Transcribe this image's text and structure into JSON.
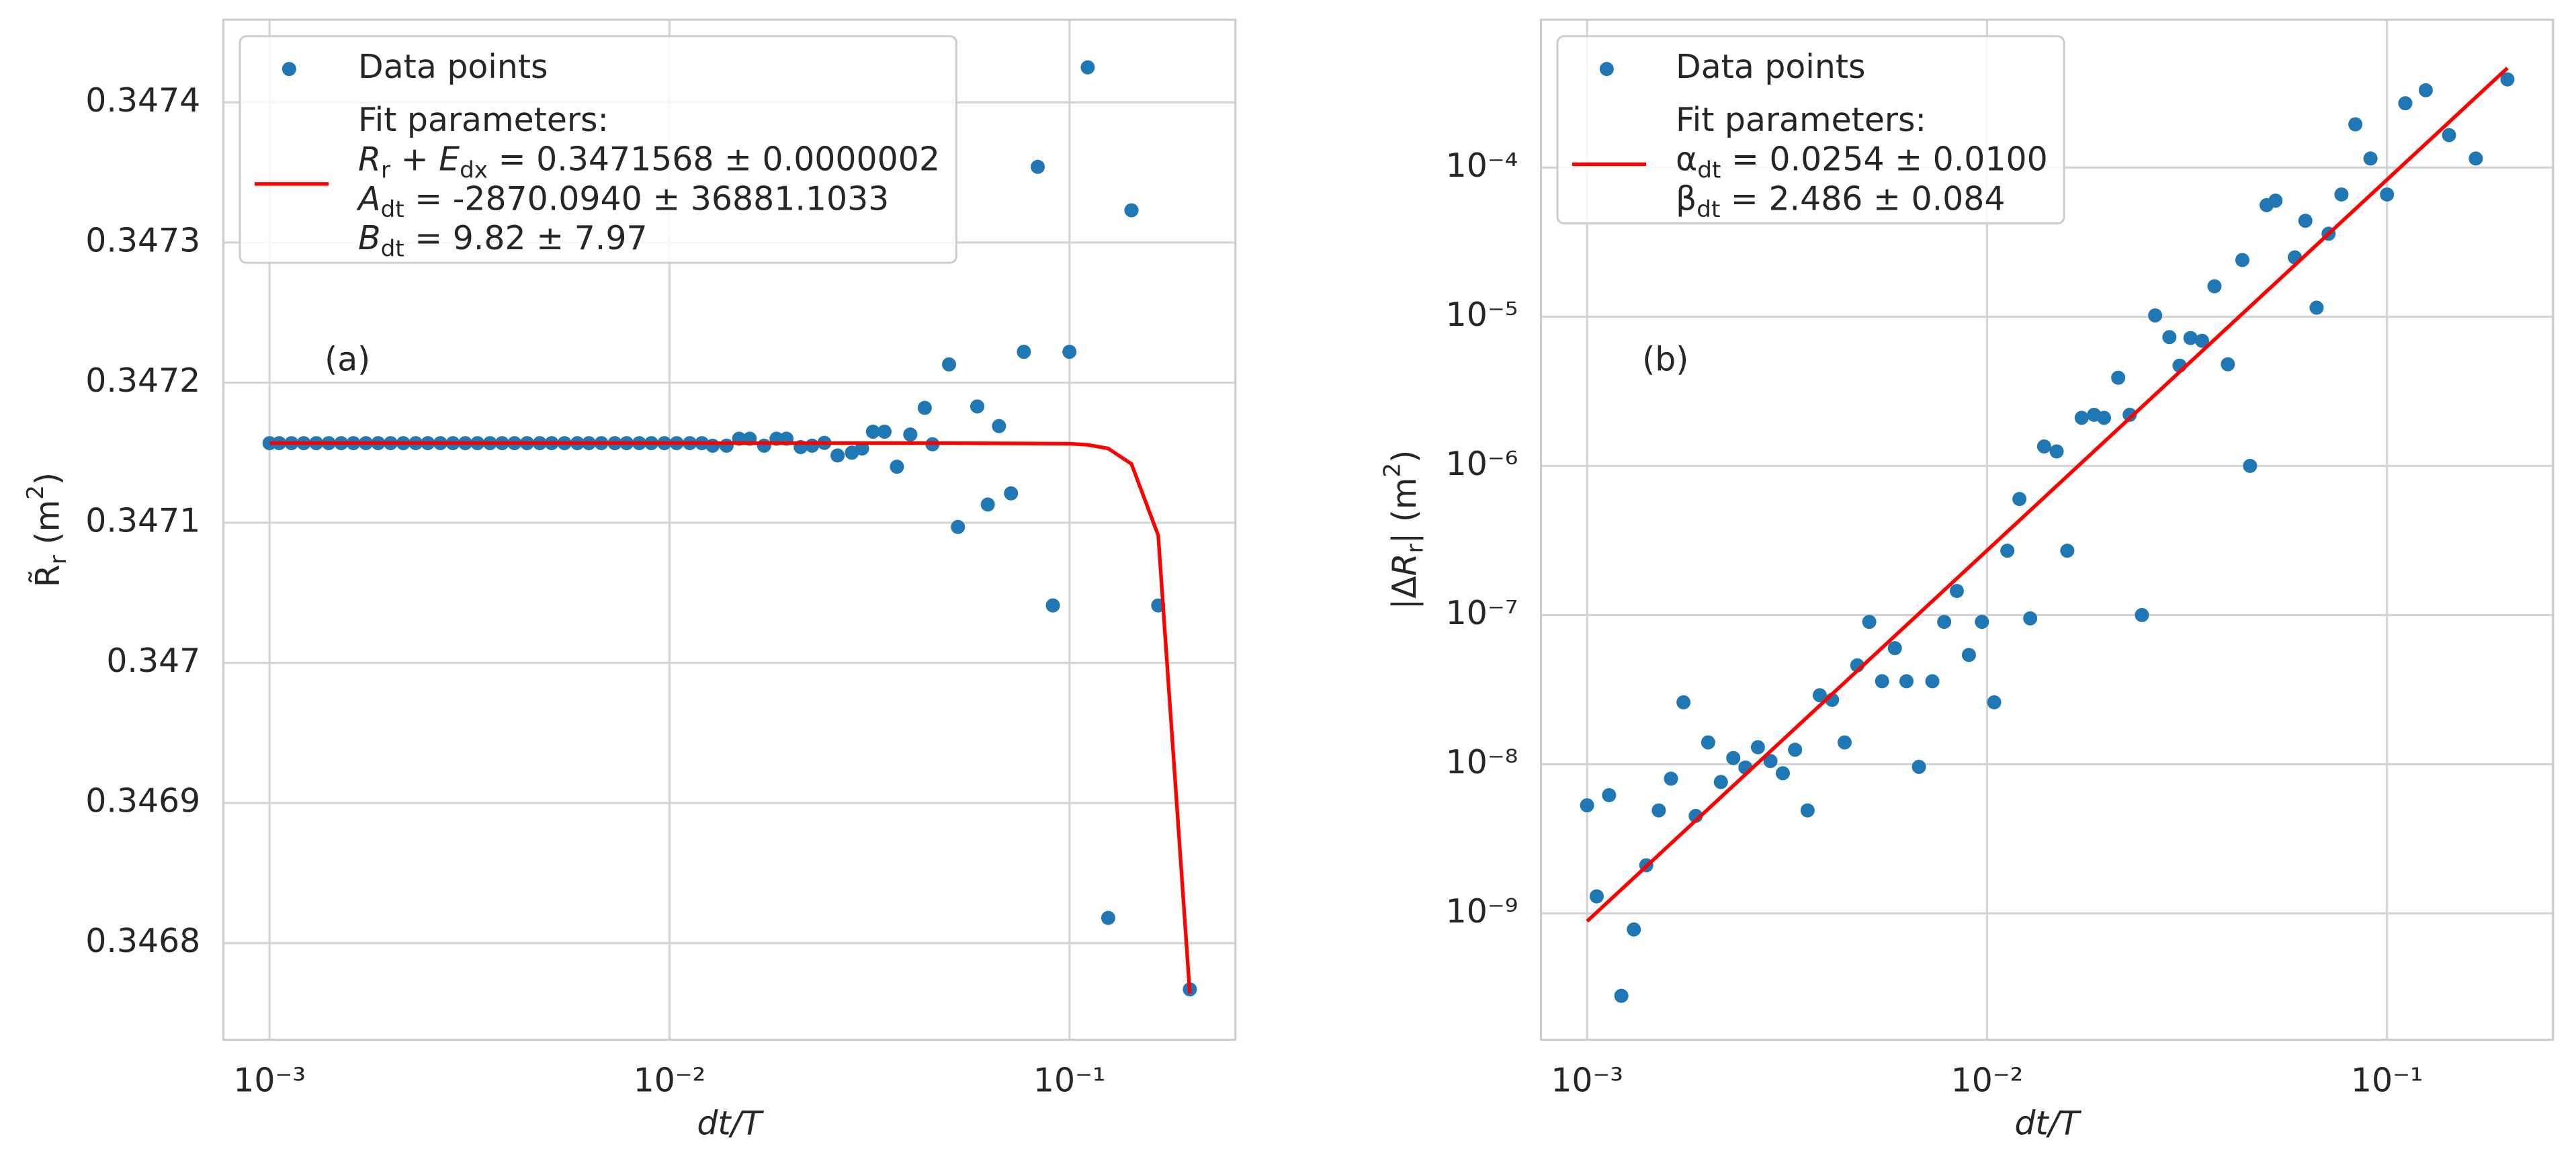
{
  "chart_data": [
    {
      "type": "scatter",
      "xlabel": "dt/T",
      "ylabel": [
        "R̃",
        {
          "text": "r",
          "script": "sub"
        },
        " (m",
        {
          "text": "2",
          "script": "sup"
        },
        ")"
      ],
      "xscale": "log",
      "yscale": "linear",
      "grid": true,
      "legend": "upper left",
      "annotation": "(a)",
      "xlim": [
        0.000767,
        0.26
      ],
      "ylim": [
        0.346731,
        0.347459
      ],
      "xticks": [
        {
          "value": 0.001,
          "label": "10⁻³"
        },
        {
          "value": 0.01,
          "label": "10⁻²"
        },
        {
          "value": 0.1,
          "label": "10⁻¹"
        }
      ],
      "yticks": [
        0.3468,
        0.3469,
        0.347,
        0.3471,
        0.3472,
        0.3473,
        0.3474
      ],
      "series": [
        {
          "name": "Data points",
          "type": "scatter",
          "color": "#1f77b4",
          "x": [
            0.001,
            0.001057,
            0.001135,
            0.001218,
            0.001309,
            0.001406,
            0.001511,
            0.001621,
            0.001742,
            0.001869,
            0.002008,
            0.00216,
            0.00232,
            0.002488,
            0.002674,
            0.002874,
            0.003086,
            0.003311,
            0.003559,
            0.003817,
            0.004098,
            0.004405,
            0.004739,
            0.005076,
            0.005464,
            0.005882,
            0.006289,
            0.006757,
            0.007299,
            0.007813,
            0.008403,
            0.009009,
            0.009709,
            0.01042,
            0.01124,
            0.01205,
            0.01282,
            0.01389,
            0.01493,
            0.01587,
            0.01724,
            0.01852,
            0.01961,
            0.02128,
            0.02273,
            0.02439,
            0.02632,
            0.02857,
            0.0303,
            0.03226,
            0.03448,
            0.03704,
            0.04,
            0.04348,
            0.04545,
            0.05,
            0.05263,
            0.05882,
            0.0625,
            0.06667,
            0.07143,
            0.07692,
            0.08333,
            0.09091,
            0.1,
            0.1111,
            0.125,
            0.1429,
            0.1667,
            0.2
          ],
          "values": [
            0.3471568,
            0.3471568,
            0.3471568,
            0.3471568,
            0.3471568,
            0.3471568,
            0.3471568,
            0.3471568,
            0.3471568,
            0.3471568,
            0.3471568,
            0.3471568,
            0.3471568,
            0.3471568,
            0.3471568,
            0.3471568,
            0.3471568,
            0.3471568,
            0.3471568,
            0.3471568,
            0.3471568,
            0.3471568,
            0.3471568,
            0.3471568,
            0.3471568,
            0.3471568,
            0.3471568,
            0.3471568,
            0.3471568,
            0.3471568,
            0.3471568,
            0.3471568,
            0.3471568,
            0.3471568,
            0.3471568,
            0.3471568,
            0.347155,
            0.347155,
            0.34716,
            0.34716,
            0.347155,
            0.34716,
            0.34716,
            0.347154,
            0.347155,
            0.347157,
            0.347148,
            0.34715,
            0.347153,
            0.347165,
            0.347165,
            0.34714,
            0.347163,
            0.347182,
            0.347156,
            0.347213,
            0.347097,
            0.347183,
            0.347113,
            0.347169,
            0.347121,
            0.347222,
            0.347354,
            0.347041,
            0.347222,
            0.347425,
            0.346818,
            0.347323,
            0.347041,
            0.346767
          ]
        },
        {
          "name": [
            [
              "Fit parameters:"
            ],
            [
              {
                "text": "R",
                "script": "ital"
              },
              {
                "text": "r",
                "script": "sub"
              },
              " + ",
              {
                "text": "E",
                "script": "ital"
              },
              {
                "text": "dx",
                "script": "sub"
              },
              " = 0.3471568 ± 0.0000002"
            ],
            [
              {
                "text": "A",
                "script": "ital"
              },
              {
                "text": "dt",
                "script": "sub"
              },
              " = -2870.0940 ± 36881.1033"
            ],
            [
              {
                "text": "B",
                "script": "ital"
              },
              {
                "text": "dt",
                "script": "sub"
              },
              " = 9.82 ± 7.97"
            ]
          ],
          "type": "line",
          "color": "#ff0000",
          "x": [
            0.001,
            0.01,
            0.05,
            0.1,
            0.1111,
            0.125,
            0.1429,
            0.1667,
            0.2
          ],
          "values": [
            0.3471568,
            0.3471568,
            0.3471568,
            0.3471564,
            0.3471556,
            0.347153,
            0.347142,
            0.347091,
            0.346764
          ]
        }
      ]
    },
    {
      "type": "scatter",
      "xlabel": "dt/T",
      "ylabel": [
        "|Δ",
        {
          "text": "R",
          "script": "ital"
        },
        {
          "text": "r",
          "script": "sub"
        },
        "| (m",
        {
          "text": "2",
          "script": "sup"
        },
        ")"
      ],
      "xscale": "log",
      "yscale": "log",
      "grid": true,
      "legend": "upper left",
      "annotation": "(b)",
      "xlim": [
        0.000767,
        0.26
      ],
      "ylim": [
        1.42e-10,
        0.00098
      ],
      "xticks": [
        {
          "value": 0.001,
          "label": "10⁻³"
        },
        {
          "value": 0.01,
          "label": "10⁻²"
        },
        {
          "value": 0.1,
          "label": "10⁻¹"
        }
      ],
      "yticks": [
        {
          "value": 1e-09,
          "label": "10⁻⁹"
        },
        {
          "value": 1e-08,
          "label": "10⁻⁸"
        },
        {
          "value": 1e-07,
          "label": "10⁻⁷"
        },
        {
          "value": 1e-06,
          "label": "10⁻⁶"
        },
        {
          "value": 1e-05,
          "label": "10⁻⁵"
        },
        {
          "value": 0.0001,
          "label": "10⁻⁴"
        }
      ],
      "series": [
        {
          "name": "Data points",
          "type": "scatter",
          "color": "#1f77b4",
          "x": [
            0.001,
            0.001057,
            0.001135,
            0.001218,
            0.001309,
            0.001406,
            0.001511,
            0.001621,
            0.001742,
            0.001869,
            0.002008,
            0.00216,
            0.00232,
            0.002488,
            0.002674,
            0.002874,
            0.003086,
            0.003311,
            0.003559,
            0.003817,
            0.004098,
            0.004405,
            0.004739,
            0.005076,
            0.005464,
            0.005882,
            0.006289,
            0.006757,
            0.007299,
            0.007813,
            0.008403,
            0.009009,
            0.009709,
            0.01042,
            0.01124,
            0.01205,
            0.01282,
            0.01389,
            0.01493,
            0.01587,
            0.01724,
            0.01852,
            0.01961,
            0.02128,
            0.02273,
            0.02439,
            0.02632,
            0.02857,
            0.0303,
            0.03226,
            0.03448,
            0.03704,
            0.04,
            0.04348,
            0.04545,
            0.05,
            0.05263,
            0.05882,
            0.0625,
            0.06667,
            0.07143,
            0.07692,
            0.08333,
            0.09091,
            0.1,
            0.1111,
            0.125,
            0.1429,
            0.1667,
            0.2
          ],
          "values": [
            5.3e-09,
            1.3e-09,
            6.2e-09,
            2.8e-10,
            7.8e-10,
            2.1e-09,
            4.9e-09,
            8e-09,
            2.6e-08,
            4.5e-09,
            1.4e-08,
            7.6e-09,
            1.1e-08,
            9.5e-09,
            1.3e-08,
            1.05e-08,
            8.7e-09,
            1.25e-08,
            4.9e-09,
            2.9e-08,
            2.7e-08,
            1.4e-08,
            4.6e-08,
            9e-08,
            3.6e-08,
            6e-08,
            3.6e-08,
            9.6e-09,
            3.6e-08,
            9e-08,
            1.45e-07,
            5.4e-08,
            9e-08,
            2.6e-08,
            2.7e-07,
            6e-07,
            9.5e-08,
            1.35e-06,
            1.25e-06,
            2.7e-07,
            2.1e-06,
            2.2e-06,
            2.1e-06,
            3.9e-06,
            2.2e-06,
            1e-07,
            1.02e-05,
            7.3e-06,
            4.7e-06,
            7.2e-06,
            6.9e-06,
            1.6e-05,
            4.8e-06,
            2.4e-05,
            1e-06,
            5.6e-05,
            6e-05,
            2.5e-05,
            4.4e-05,
            1.15e-05,
            3.6e-05,
            6.6e-05,
            0.000195,
            0.000115,
            6.6e-05,
            0.00027,
            0.00033,
            0.000165,
            0.000115,
            0.00039
          ]
        },
        {
          "name": [
            [
              "Fit parameters:"
            ],
            [
              "α",
              {
                "text": "dt",
                "script": "sub"
              },
              " = 0.0254 ± 0.0100"
            ],
            [
              "β",
              {
                "text": "dt",
                "script": "sub"
              },
              " = 2.486 ± 0.084"
            ]
          ],
          "type": "line",
          "color": "#ff0000",
          "x": [
            0.001,
            0.2
          ],
          "values": [
            8.85e-10,
            0.000465
          ]
        }
      ]
    }
  ]
}
